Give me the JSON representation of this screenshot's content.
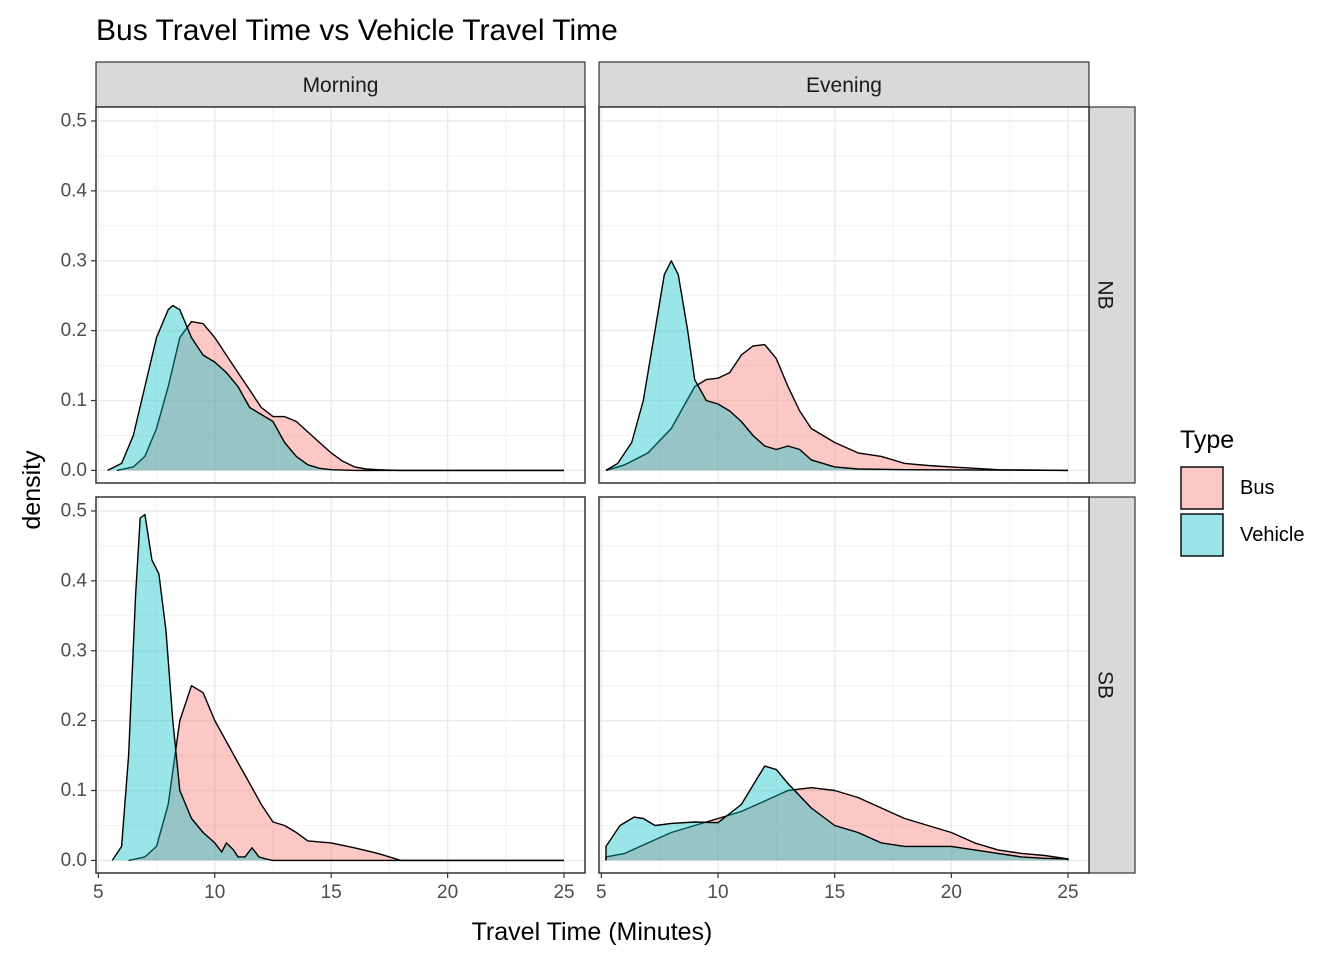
{
  "chart_data": {
    "type": "area",
    "subtype": "density",
    "title": "Bus Travel Time vs Vehicle Travel Time",
    "xlabel": "Travel Time (Minutes)",
    "ylabel": "density",
    "xlim": [
      4.9,
      25.9
    ],
    "ylim": [
      -0.018,
      0.52
    ],
    "xticks": [
      5,
      10,
      15,
      20,
      25
    ],
    "yticks": [
      0.0,
      0.1,
      0.2,
      0.3,
      0.4,
      0.5
    ],
    "ytick_labels": [
      "0.0",
      "0.1",
      "0.2",
      "0.3",
      "0.4",
      "0.5"
    ],
    "grid": true,
    "legend": {
      "title": "Type",
      "position": "right",
      "entries": [
        {
          "label": "Bus",
          "color": "#F8766D"
        },
        {
          "label": "Vehicle",
          "color": "#00BFC4"
        }
      ]
    },
    "col_strips": [
      "Morning",
      "Evening"
    ],
    "row_strips": [
      "NB",
      "SB"
    ],
    "panels": [
      {
        "row": "NB",
        "col": "Morning",
        "series": [
          {
            "name": "Bus",
            "x": [
              5.8,
              6.5,
              7,
              7.5,
              8,
              8.5,
              9,
              9.5,
              10,
              10.5,
              11,
              11.5,
              12,
              12.5,
              13,
              13.5,
              14,
              14.5,
              15,
              15.5,
              16,
              16.5,
              17,
              18,
              20,
              25
            ],
            "y": [
              0,
              0.005,
              0.02,
              0.06,
              0.12,
              0.19,
              0.213,
              0.21,
              0.19,
              0.165,
              0.14,
              0.115,
              0.09,
              0.077,
              0.077,
              0.07,
              0.055,
              0.04,
              0.025,
              0.013,
              0.005,
              0.002,
              0.001,
              0,
              0,
              0
            ]
          },
          {
            "name": "Vehicle",
            "x": [
              5.4,
              6,
              6.5,
              7,
              7.5,
              8,
              8.2,
              8.5,
              9,
              9.5,
              10,
              10.5,
              11,
              11.5,
              12,
              12.5,
              13,
              13.5,
              14,
              14.5,
              15,
              16,
              17,
              25
            ],
            "y": [
              0,
              0.01,
              0.05,
              0.12,
              0.19,
              0.23,
              0.236,
              0.23,
              0.19,
              0.165,
              0.155,
              0.14,
              0.12,
              0.09,
              0.08,
              0.07,
              0.04,
              0.02,
              0.008,
              0.003,
              0.001,
              0,
              0,
              0
            ]
          }
        ]
      },
      {
        "row": "NB",
        "col": "Evening",
        "series": [
          {
            "name": "Bus",
            "x": [
              5.2,
              6,
              7,
              8,
              8.5,
              9,
              9.5,
              10,
              10.5,
              11,
              11.5,
              12,
              12.5,
              13,
              13.5,
              14,
              15,
              16,
              17,
              18,
              19,
              20,
              22,
              25
            ],
            "y": [
              0,
              0.008,
              0.025,
              0.06,
              0.09,
              0.12,
              0.13,
              0.132,
              0.14,
              0.165,
              0.178,
              0.18,
              0.16,
              0.12,
              0.085,
              0.06,
              0.04,
              0.025,
              0.02,
              0.01,
              0.007,
              0.005,
              0.001,
              0
            ]
          },
          {
            "name": "Vehicle",
            "x": [
              5.2,
              5.7,
              6.3,
              6.8,
              7.3,
              7.7,
              8,
              8.3,
              8.7,
              9,
              9.5,
              10,
              10.5,
              11,
              11.5,
              12,
              12.5,
              13,
              13.5,
              14,
              15,
              16,
              18,
              25
            ],
            "y": [
              0,
              0.01,
              0.04,
              0.1,
              0.2,
              0.28,
              0.3,
              0.28,
              0.2,
              0.13,
              0.1,
              0.095,
              0.085,
              0.07,
              0.05,
              0.035,
              0.03,
              0.035,
              0.03,
              0.015,
              0.005,
              0.002,
              0.001,
              0
            ]
          }
        ]
      },
      {
        "row": "SB",
        "col": "Morning",
        "series": [
          {
            "name": "Bus",
            "x": [
              6.3,
              7,
              7.5,
              8,
              8.5,
              9,
              9.5,
              10,
              10.5,
              11,
              11.5,
              12,
              12.5,
              13,
              13.5,
              14,
              15,
              16,
              17,
              18,
              25
            ],
            "y": [
              0,
              0.005,
              0.02,
              0.08,
              0.2,
              0.25,
              0.24,
              0.2,
              0.17,
              0.14,
              0.11,
              0.08,
              0.055,
              0.05,
              0.04,
              0.028,
              0.025,
              0.018,
              0.01,
              0,
              0
            ]
          },
          {
            "name": "Vehicle",
            "x": [
              5.6,
              6,
              6.3,
              6.6,
              6.8,
              7,
              7.3,
              7.6,
              7.9,
              8.2,
              8.5,
              9,
              9.5,
              10,
              10.3,
              10.5,
              10.8,
              11,
              11.3,
              11.6,
              11.9,
              12.2,
              12.5,
              25
            ],
            "y": [
              0,
              0.02,
              0.15,
              0.38,
              0.49,
              0.495,
              0.43,
              0.41,
              0.33,
              0.2,
              0.1,
              0.06,
              0.04,
              0.025,
              0.012,
              0.025,
              0.015,
              0.005,
              0.005,
              0.018,
              0.005,
              0.002,
              0,
              0
            ]
          }
        ]
      },
      {
        "row": "SB",
        "col": "Evening",
        "series": [
          {
            "name": "Bus",
            "x": [
              5.2,
              6,
              7,
              8,
              9,
              10,
              11,
              12,
              13,
              14,
              15,
              16,
              17,
              18,
              19,
              20,
              21,
              22,
              23,
              24,
              25
            ],
            "y": [
              0.005,
              0.01,
              0.025,
              0.04,
              0.05,
              0.06,
              0.07,
              0.085,
              0.1,
              0.104,
              0.1,
              0.09,
              0.075,
              0.06,
              0.05,
              0.04,
              0.025,
              0.015,
              0.01,
              0.007,
              0.002
            ]
          },
          {
            "name": "Vehicle",
            "x": [
              5.2,
              5.8,
              6.4,
              6.8,
              7.3,
              8,
              9,
              10,
              11,
              12,
              12.5,
              13,
              14,
              15,
              16,
              17,
              18,
              19,
              20,
              21,
              22,
              23,
              24,
              25
            ],
            "y": [
              0.02,
              0.05,
              0.062,
              0.06,
              0.05,
              0.053,
              0.055,
              0.054,
              0.08,
              0.135,
              0.13,
              0.11,
              0.075,
              0.05,
              0.04,
              0.025,
              0.02,
              0.02,
              0.02,
              0.015,
              0.01,
              0.005,
              0.003,
              0.002
            ]
          }
        ]
      }
    ]
  }
}
